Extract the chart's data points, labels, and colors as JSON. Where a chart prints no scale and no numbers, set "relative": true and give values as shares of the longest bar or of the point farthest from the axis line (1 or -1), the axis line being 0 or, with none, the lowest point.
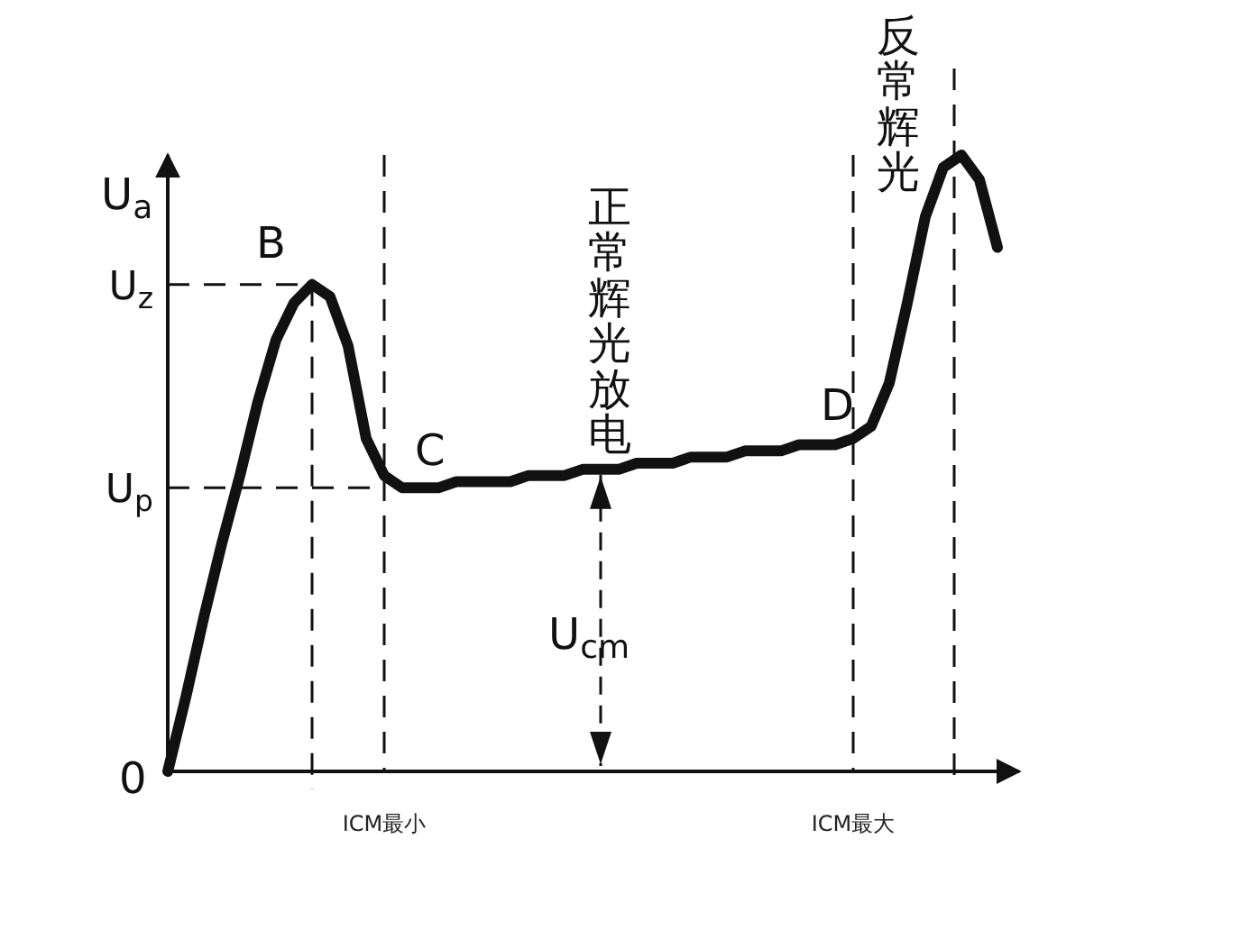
{
  "chart_data": {
    "type": "line",
    "relative": true,
    "ylabel": "U$_{a}$",
    "color": "#111111",
    "categories": [
      null,
      null,
      null,
      null,
      null,
      null,
      null,
      null,
      null,
      null,
      null,
      null,
      "ICM最小",
      null,
      null,
      null,
      null,
      null,
      null,
      null,
      null,
      null,
      null,
      null,
      null,
      null,
      null,
      null,
      null,
      null,
      null,
      null,
      null,
      null,
      null,
      null,
      null,
      null,
      "ICM最大",
      null,
      null,
      null,
      null,
      null,
      null,
      null,
      null
    ],
    "values": [
      0,
      0.12,
      0.25,
      0.37,
      0.48,
      0.6,
      0.7,
      0.76,
      0.79,
      0.77,
      0.69,
      0.54,
      0.48,
      0.46,
      0.46,
      0.46,
      0.47,
      0.47,
      0.47,
      0.47,
      0.48,
      0.48,
      0.48,
      0.49,
      0.49,
      0.49,
      0.5,
      0.5,
      0.5,
      0.51,
      0.51,
      0.51,
      0.52,
      0.52,
      0.52,
      0.53,
      0.53,
      0.53,
      0.54,
      0.56,
      0.63,
      0.76,
      0.9,
      0.98,
      1,
      0.96,
      0.85
    ],
    "ref_lines": [
      {
        "axis": "y",
        "value": 0.79,
        "label": "U$_{z}$",
        "line_style": "dashed"
      },
      {
        "axis": "y",
        "value": 0.46,
        "label": "U$_{p}$",
        "line_style": "dashed"
      }
    ],
    "grid": "x",
    "annotations": [
      "0",
      "B",
      "C",
      "D",
      "正常辉光放电",
      "反常辉光",
      "U$_{cm}$"
    ],
    "marker": "none",
    "line_style": "solid"
  }
}
